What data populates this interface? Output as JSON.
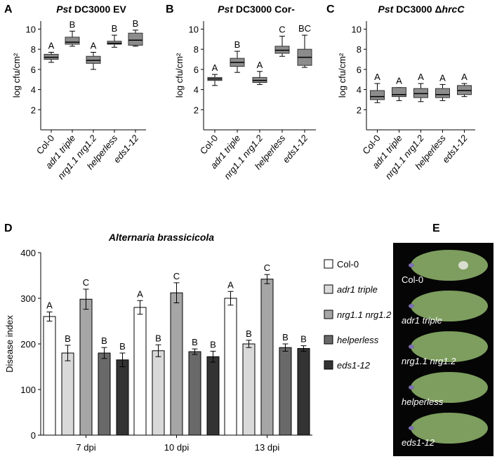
{
  "chart_data": [
    {
      "type": "box",
      "panel": "A",
      "title_parts": [
        {
          "text": "Pst",
          "italic": true
        },
        {
          "text": " DC3000 EV",
          "italic": false
        }
      ],
      "ylabel": "log cfu/cm²",
      "categories": [
        "Col-0",
        "adr1 triple",
        "nrg1.1 nrg1.2",
        "helperless",
        "eds1-12"
      ],
      "category_italic": [
        false,
        true,
        true,
        true,
        true
      ],
      "boxes": [
        {
          "min": 6.7,
          "q1": 7.0,
          "median": 7.2,
          "q3": 7.5,
          "max": 7.7
        },
        {
          "min": 8.3,
          "q1": 8.5,
          "median": 8.7,
          "q3": 9.2,
          "max": 9.8
        },
        {
          "min": 6.0,
          "q1": 6.6,
          "median": 6.9,
          "q3": 7.3,
          "max": 7.7
        },
        {
          "min": 8.2,
          "q1": 8.5,
          "median": 8.6,
          "q3": 8.8,
          "max": 9.4
        },
        {
          "min": 8.3,
          "q1": 8.4,
          "median": 8.9,
          "q3": 9.6,
          "max": 9.9
        }
      ],
      "letters": [
        "A",
        "B",
        "A",
        "B",
        "B"
      ],
      "color": "#8c8c8c",
      "ylim": [
        0,
        10.8
      ],
      "yticks": [
        2,
        4,
        6,
        8,
        10
      ]
    },
    {
      "type": "box",
      "panel": "B",
      "title_parts": [
        {
          "text": "Pst",
          "italic": true
        },
        {
          "text": " DC3000 Cor-",
          "italic": false
        }
      ],
      "ylabel": "log cfu/cm²",
      "categories": [
        "Col-0",
        "adr1 triple",
        "nrg1.1 nrg1.2",
        "helperless",
        "eds1-12"
      ],
      "category_italic": [
        false,
        true,
        true,
        true,
        true
      ],
      "boxes": [
        {
          "min": 4.4,
          "q1": 4.9,
          "median": 5.05,
          "q3": 5.2,
          "max": 5.5
        },
        {
          "min": 5.7,
          "q1": 6.3,
          "median": 6.7,
          "q3": 7.1,
          "max": 7.8
        },
        {
          "min": 4.5,
          "q1": 4.7,
          "median": 4.9,
          "q3": 5.2,
          "max": 5.8
        },
        {
          "min": 7.3,
          "q1": 7.6,
          "median": 7.9,
          "q3": 8.3,
          "max": 9.3
        },
        {
          "min": 6.2,
          "q1": 6.4,
          "median": 7.2,
          "q3": 8.0,
          "max": 9.4
        }
      ],
      "letters": [
        "A",
        "B",
        "A",
        "C",
        "BC"
      ],
      "color": "#8c8c8c",
      "ylim": [
        0,
        10.8
      ],
      "yticks": [
        2,
        4,
        6,
        8,
        10
      ]
    },
    {
      "type": "box",
      "panel": "C",
      "title_parts": [
        {
          "text": "Pst",
          "italic": true
        },
        {
          "text": " DC3000 Δ",
          "italic": false
        },
        {
          "text": "hrcC",
          "italic": true
        }
      ],
      "ylabel": "log cfu/cm²",
      "categories": [
        "Col-0",
        "adr1 triple",
        "nrg1.1 nrg1.2",
        "helperless",
        "eds1-12"
      ],
      "category_italic": [
        false,
        true,
        true,
        true,
        true
      ],
      "boxes": [
        {
          "min": 2.7,
          "q1": 3.0,
          "median": 3.3,
          "q3": 3.9,
          "max": 4.6
        },
        {
          "min": 2.9,
          "q1": 3.3,
          "median": 3.5,
          "q3": 4.2,
          "max": 4.2
        },
        {
          "min": 2.8,
          "q1": 3.2,
          "median": 3.6,
          "q3": 4.1,
          "max": 4.6
        },
        {
          "min": 2.9,
          "q1": 3.2,
          "median": 3.5,
          "q3": 4.1,
          "max": 4.5
        },
        {
          "min": 3.3,
          "q1": 3.5,
          "median": 3.9,
          "q3": 4.4,
          "max": 4.6
        }
      ],
      "letters": [
        "A",
        "A",
        "A",
        "A",
        "A"
      ],
      "color": "#8c8c8c",
      "ylim": [
        0,
        10.8
      ],
      "yticks": [
        2,
        4,
        6,
        8,
        10
      ]
    },
    {
      "type": "bar",
      "panel": "D",
      "title": "Alternaria brassicicola",
      "ylabel": "Disease index",
      "categories": [
        "7 dpi",
        "10 dpi",
        "13 dpi"
      ],
      "series": [
        {
          "name": "Col-0",
          "italic": false,
          "color": "#ffffff",
          "values": [
            260,
            280,
            300
          ],
          "errors": [
            10,
            15,
            15
          ],
          "letters": [
            "A",
            "A",
            "A"
          ]
        },
        {
          "name": "adr1 triple",
          "italic": true,
          "color": "#d9d9d9",
          "values": [
            180,
            185,
            200
          ],
          "errors": [
            17,
            13,
            8
          ],
          "letters": [
            "B",
            "B",
            "B"
          ]
        },
        {
          "name": "nrg1.1 nrg1.2",
          "italic": true,
          "color": "#a6a6a6",
          "values": [
            298,
            312,
            342
          ],
          "errors": [
            22,
            22,
            10
          ],
          "letters": [
            "C",
            "C",
            "C"
          ]
        },
        {
          "name": "helperless",
          "italic": true,
          "color": "#696969",
          "values": [
            180,
            183,
            192
          ],
          "errors": [
            12,
            6,
            8
          ],
          "letters": [
            "B",
            "B",
            "B"
          ]
        },
        {
          "name": "eds1-12",
          "italic": true,
          "color": "#333333",
          "values": [
            165,
            172,
            190
          ],
          "errors": [
            15,
            12,
            6
          ],
          "letters": [
            "B",
            "B",
            "B"
          ]
        }
      ],
      "ylim": [
        0,
        400
      ],
      "yticks": [
        0,
        100,
        200,
        300,
        400
      ]
    }
  ],
  "panel_e": {
    "label": "E",
    "leaf_labels": [
      {
        "text": "Col-0",
        "italic": false
      },
      {
        "text": "adr1 triple",
        "italic": true
      },
      {
        "text": "nrg1.1 nrg1.2",
        "italic": true
      },
      {
        "text": "helperless",
        "italic": true
      },
      {
        "text": "eds1-12",
        "italic": true
      }
    ]
  }
}
